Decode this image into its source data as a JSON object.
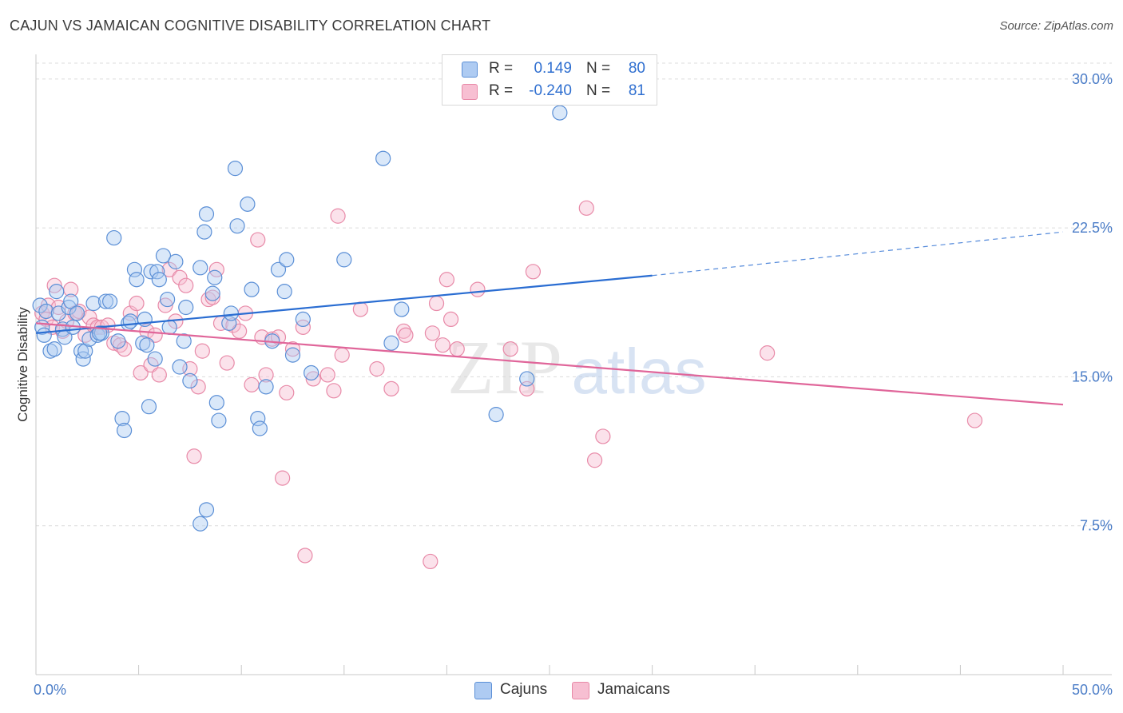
{
  "header": {
    "title": "CAJUN VS JAMAICAN COGNITIVE DISABILITY CORRELATION CHART",
    "source": "Source: ZipAtlas.com"
  },
  "watermark": {
    "zip": "ZIP",
    "atlas": "atlas"
  },
  "legend": {
    "rows": [
      {
        "r_label": "R =",
        "r_value": "0.149",
        "n_label": "N =",
        "n_value": "80"
      },
      {
        "r_label": "R =",
        "r_value": "-0.240",
        "n_label": "N =",
        "n_value": "81"
      }
    ],
    "bottom": [
      "Cajuns",
      "Jamaicans"
    ]
  },
  "colors": {
    "cajun_fill": "#aecbf2",
    "cajun_stroke": "#5b8fd6",
    "cajun_line": "#2a6dd2",
    "jamaican_fill": "#f7bfd2",
    "jamaican_stroke": "#e88aa8",
    "jamaican_line": "#e0669a",
    "tick_text": "#4a7cc7",
    "grid": "#dcdcdc"
  },
  "chart_data": {
    "type": "scatter",
    "title": "CAJUN VS JAMAICAN COGNITIVE DISABILITY CORRELATION CHART",
    "xlabel": "",
    "ylabel": "Cognitive Disability",
    "xlim": [
      0,
      50
    ],
    "ylim": [
      0,
      30.8
    ],
    "x_tick_labels": [
      "0.0%",
      "50.0%"
    ],
    "y_ticks": [
      7.5,
      15.0,
      22.5,
      30.0
    ],
    "y_tick_labels": [
      "7.5%",
      "15.0%",
      "22.5%",
      "30.0%"
    ],
    "grid": "horizontal dashed",
    "legend_position": "top-center",
    "series": [
      {
        "name": "Cajuns",
        "R": 0.149,
        "N": 80,
        "trend": {
          "x": [
            0,
            30
          ],
          "y": [
            17.2,
            20.1
          ],
          "dashed_extension_to": [
            50,
            22.3
          ]
        },
        "points": [
          [
            0.2,
            18.6
          ],
          [
            0.3,
            17.5
          ],
          [
            0.4,
            17.1
          ],
          [
            0.5,
            18.3
          ],
          [
            0.7,
            16.3
          ],
          [
            0.9,
            16.4
          ],
          [
            1.0,
            19.3
          ],
          [
            1.1,
            18.2
          ],
          [
            1.3,
            17.4
          ],
          [
            1.4,
            17.0
          ],
          [
            1.6,
            18.5
          ],
          [
            1.7,
            18.8
          ],
          [
            1.8,
            17.5
          ],
          [
            2.0,
            18.2
          ],
          [
            2.2,
            16.3
          ],
          [
            2.3,
            15.9
          ],
          [
            2.4,
            16.3
          ],
          [
            2.6,
            16.9
          ],
          [
            2.8,
            18.7
          ],
          [
            3.0,
            17.1
          ],
          [
            3.2,
            17.2
          ],
          [
            3.4,
            18.8
          ],
          [
            3.6,
            18.8
          ],
          [
            3.8,
            22.0
          ],
          [
            4.0,
            16.8
          ],
          [
            4.2,
            12.9
          ],
          [
            4.3,
            12.3
          ],
          [
            4.5,
            17.7
          ],
          [
            4.6,
            17.8
          ],
          [
            4.8,
            20.4
          ],
          [
            4.9,
            19.9
          ],
          [
            5.2,
            16.7
          ],
          [
            5.3,
            17.9
          ],
          [
            5.4,
            16.6
          ],
          [
            5.5,
            13.5
          ],
          [
            5.6,
            20.3
          ],
          [
            5.8,
            15.9
          ],
          [
            5.9,
            20.3
          ],
          [
            6.0,
            19.9
          ],
          [
            6.2,
            21.1
          ],
          [
            6.4,
            18.9
          ],
          [
            6.8,
            20.8
          ],
          [
            7.0,
            15.5
          ],
          [
            7.2,
            16.8
          ],
          [
            7.3,
            18.5
          ],
          [
            7.5,
            14.8
          ],
          [
            8.0,
            20.5
          ],
          [
            8.2,
            22.3
          ],
          [
            8.3,
            23.2
          ],
          [
            8.0,
            7.6
          ],
          [
            8.3,
            8.3
          ],
          [
            8.6,
            19.2
          ],
          [
            8.7,
            20.0
          ],
          [
            8.8,
            13.7
          ],
          [
            8.9,
            12.8
          ],
          [
            9.4,
            17.7
          ],
          [
            9.5,
            18.2
          ],
          [
            9.7,
            25.5
          ],
          [
            9.8,
            22.6
          ],
          [
            10.3,
            23.7
          ],
          [
            10.5,
            19.4
          ],
          [
            10.8,
            12.9
          ],
          [
            10.9,
            12.4
          ],
          [
            11.2,
            14.5
          ],
          [
            11.5,
            16.8
          ],
          [
            11.8,
            20.4
          ],
          [
            12.1,
            19.3
          ],
          [
            12.2,
            20.9
          ],
          [
            12.5,
            16.1
          ],
          [
            13.0,
            17.9
          ],
          [
            13.4,
            15.2
          ],
          [
            15.0,
            20.9
          ],
          [
            16.9,
            26.0
          ],
          [
            17.3,
            16.7
          ],
          [
            17.8,
            18.4
          ],
          [
            22.4,
            13.1
          ],
          [
            23.9,
            14.9
          ],
          [
            25.5,
            28.3
          ],
          [
            6.5,
            17.5
          ],
          [
            3.1,
            17.2
          ]
        ]
      },
      {
        "name": "Jamaicans",
        "R": -0.24,
        "N": 81,
        "trend": {
          "x": [
            0,
            50
          ],
          "y": [
            17.7,
            13.6
          ]
        },
        "points": [
          [
            0.3,
            18.2
          ],
          [
            0.5,
            17.9
          ],
          [
            0.6,
            18.6
          ],
          [
            0.8,
            17.5
          ],
          [
            0.9,
            19.6
          ],
          [
            1.1,
            18.5
          ],
          [
            1.3,
            17.3
          ],
          [
            1.5,
            17.8
          ],
          [
            1.7,
            19.4
          ],
          [
            1.9,
            18.2
          ],
          [
            2.1,
            18.3
          ],
          [
            2.4,
            17.1
          ],
          [
            2.6,
            18.0
          ],
          [
            2.8,
            17.6
          ],
          [
            3.0,
            17.5
          ],
          [
            3.2,
            17.5
          ],
          [
            3.5,
            17.6
          ],
          [
            3.8,
            16.7
          ],
          [
            4.1,
            16.6
          ],
          [
            4.3,
            16.4
          ],
          [
            4.6,
            18.2
          ],
          [
            4.9,
            18.7
          ],
          [
            5.1,
            15.2
          ],
          [
            5.4,
            17.3
          ],
          [
            5.6,
            15.6
          ],
          [
            5.8,
            17.1
          ],
          [
            6.0,
            15.1
          ],
          [
            6.3,
            18.6
          ],
          [
            6.5,
            20.4
          ],
          [
            6.8,
            17.8
          ],
          [
            7.0,
            20.0
          ],
          [
            7.3,
            19.6
          ],
          [
            7.5,
            15.4
          ],
          [
            7.7,
            11.0
          ],
          [
            7.9,
            14.5
          ],
          [
            8.1,
            16.3
          ],
          [
            8.4,
            18.9
          ],
          [
            8.6,
            19.0
          ],
          [
            8.8,
            20.4
          ],
          [
            9.0,
            17.7
          ],
          [
            9.3,
            15.7
          ],
          [
            9.6,
            17.6
          ],
          [
            9.9,
            17.3
          ],
          [
            10.2,
            18.2
          ],
          [
            10.5,
            14.6
          ],
          [
            10.8,
            21.9
          ],
          [
            11.0,
            17.0
          ],
          [
            11.2,
            15.1
          ],
          [
            11.5,
            16.9
          ],
          [
            11.8,
            17.0
          ],
          [
            12.0,
            9.9
          ],
          [
            12.2,
            14.2
          ],
          [
            12.5,
            16.4
          ],
          [
            13.0,
            17.5
          ],
          [
            13.1,
            6.0
          ],
          [
            13.5,
            14.9
          ],
          [
            14.2,
            15.1
          ],
          [
            14.5,
            14.3
          ],
          [
            14.7,
            23.1
          ],
          [
            14.9,
            16.1
          ],
          [
            15.8,
            18.4
          ],
          [
            16.6,
            15.4
          ],
          [
            17.3,
            14.4
          ],
          [
            17.9,
            17.3
          ],
          [
            18.0,
            17.1
          ],
          [
            19.2,
            5.7
          ],
          [
            19.3,
            17.2
          ],
          [
            19.5,
            18.7
          ],
          [
            19.8,
            16.6
          ],
          [
            20.0,
            19.9
          ],
          [
            20.2,
            17.9
          ],
          [
            20.5,
            16.4
          ],
          [
            21.5,
            19.4
          ],
          [
            23.1,
            16.4
          ],
          [
            23.9,
            14.4
          ],
          [
            24.2,
            20.3
          ],
          [
            27.2,
            10.8
          ],
          [
            27.6,
            12.0
          ],
          [
            26.8,
            23.5
          ],
          [
            35.6,
            16.2
          ],
          [
            45.7,
            12.8
          ]
        ]
      }
    ]
  }
}
